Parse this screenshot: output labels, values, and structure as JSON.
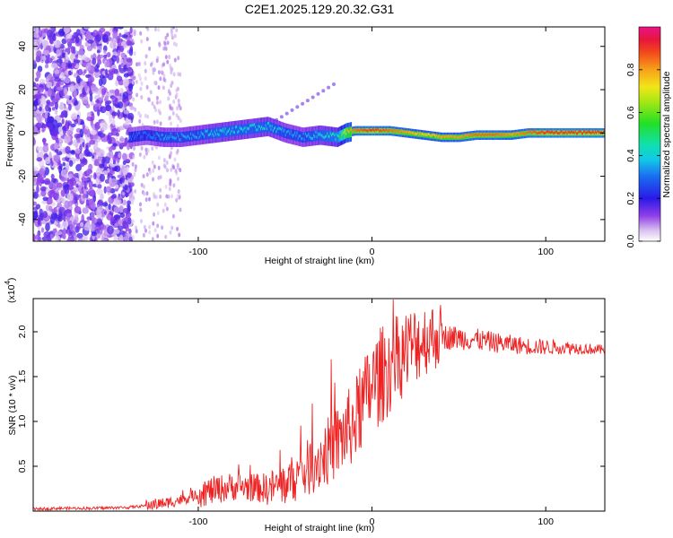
{
  "title": "C2E1.2025.129.20.32.G31",
  "chart_data": [
    {
      "type": "heatmap",
      "xlabel": "Height of straight line (km)",
      "ylabel": "Frequency (Hz)",
      "xlim": [
        -195,
        134
      ],
      "ylim": [
        -50,
        49
      ],
      "xticks": [
        -100,
        0,
        100
      ],
      "yticks": [
        -40,
        -20,
        0,
        20,
        40
      ],
      "colorbar": {
        "label": "Normalized spectral amplitude",
        "range": [
          0,
          1
        ],
        "ticks": [
          0.0,
          0.2,
          0.4,
          0.6,
          0.8
        ]
      },
      "ridge": {
        "x": [
          -140,
          -130,
          -120,
          -110,
          -100,
          -90,
          -80,
          -70,
          -60,
          -50,
          -40,
          -30,
          -20,
          -15,
          -10,
          0,
          10,
          20,
          30,
          40,
          50,
          60,
          70,
          80,
          90,
          100,
          110,
          120,
          134
        ],
        "freq_hz": [
          -2,
          -1,
          -2,
          -2,
          -1,
          0,
          1,
          2,
          3,
          0,
          -2,
          -1,
          -2,
          0,
          1,
          1,
          1,
          0,
          -1,
          -2,
          -2,
          -1,
          -1,
          -1,
          0,
          0,
          0,
          0,
          0
        ],
        "amplitude": [
          0.3,
          0.3,
          0.35,
          0.35,
          0.35,
          0.4,
          0.4,
          0.4,
          0.4,
          0.35,
          0.35,
          0.4,
          0.45,
          0.75,
          0.85,
          0.9,
          0.85,
          0.8,
          0.75,
          0.8,
          0.8,
          0.85,
          0.85,
          0.8,
          0.85,
          0.9,
          0.9,
          0.9,
          0.9
        ]
      },
      "noise_region_x": [
        -195,
        -138
      ],
      "grid": false
    },
    {
      "type": "line",
      "xlabel": "Height of straight line (km)",
      "ylabel": "SNR (10 * v/v)",
      "y_scale_label": "(x10",
      "y_scale_exp": "4",
      "xlim": [
        -195,
        134
      ],
      "ylim": [
        0,
        2.37
      ],
      "xticks": [
        -100,
        0,
        100
      ],
      "yticks": [
        0.5,
        1.0,
        1.5,
        2.0
      ],
      "ytick_labels": [
        "0.5",
        "1.0",
        "1.5",
        "2.0"
      ],
      "series": [
        {
          "color": "#ee2222",
          "x": [
            -195,
            -180,
            -160,
            -140,
            -130,
            -120,
            -110,
            -100,
            -90,
            -80,
            -70,
            -60,
            -50,
            -40,
            -30,
            -20,
            -10,
            -5,
            0,
            5,
            10,
            20,
            30,
            40,
            50,
            60,
            70,
            80,
            90,
            100,
            110,
            120,
            134
          ],
          "y": [
            0.02,
            0.03,
            0.03,
            0.04,
            0.06,
            0.08,
            0.12,
            0.18,
            0.22,
            0.26,
            0.25,
            0.23,
            0.28,
            0.4,
            0.55,
            0.72,
            0.95,
            1.15,
            1.35,
            1.45,
            1.55,
            1.75,
            1.88,
            1.93,
            1.92,
            1.9,
            1.87,
            1.85,
            1.83,
            1.82,
            1.82,
            1.81,
            1.79
          ]
        }
      ],
      "grid": false
    }
  ]
}
